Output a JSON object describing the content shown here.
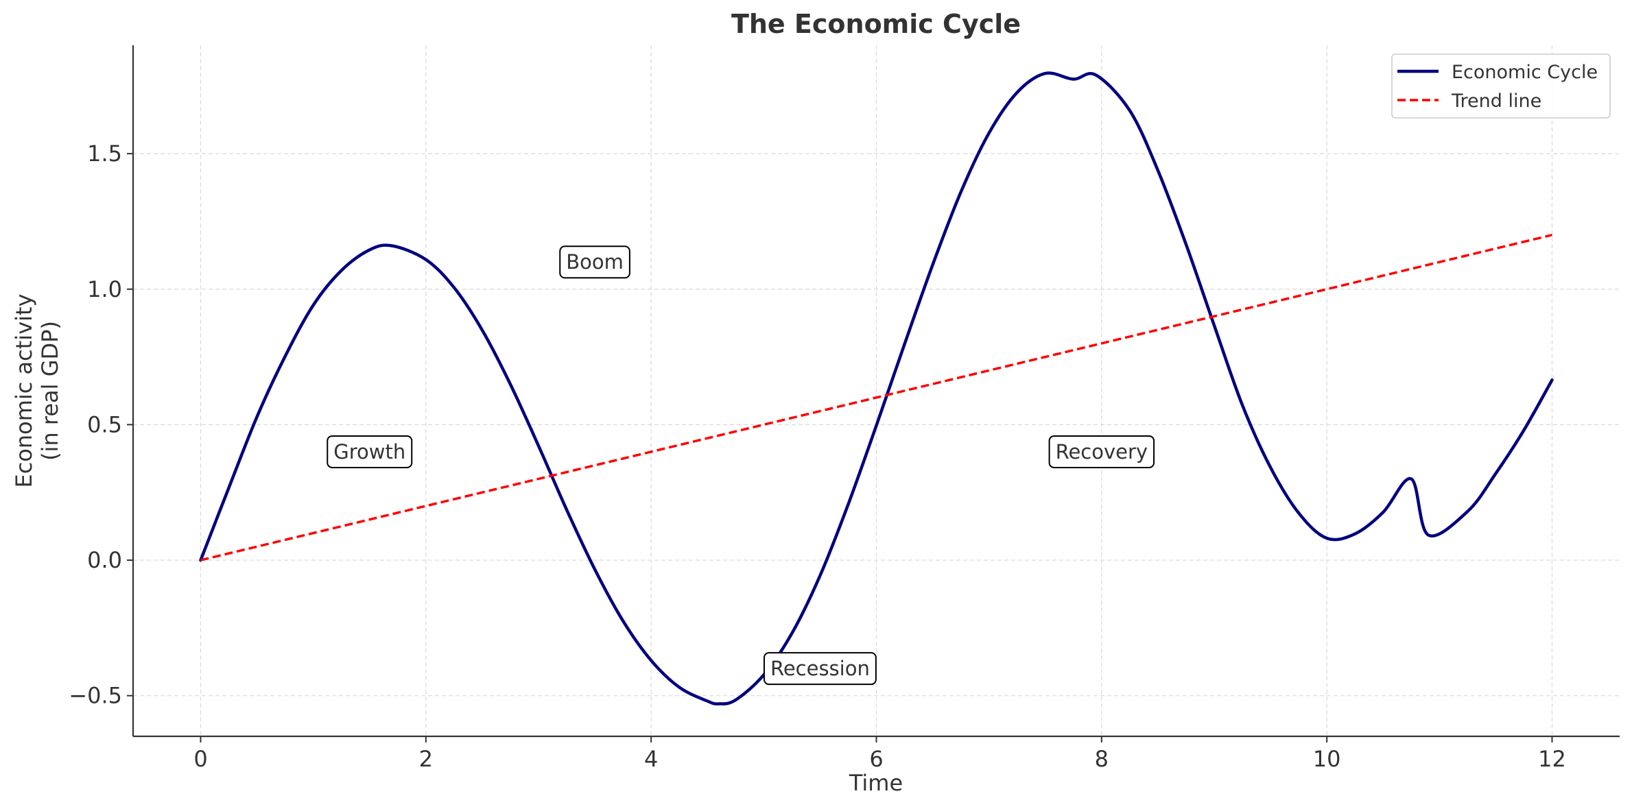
{
  "chart_data": {
    "type": "line",
    "title": "The Economic Cycle",
    "xlabel": "Time",
    "ylabel_lines": [
      "Economic activity",
      "(in real GDP)"
    ],
    "xlim": [
      -0.6,
      12.6
    ],
    "ylim": [
      -0.65,
      1.9
    ],
    "x_ticks": [
      0,
      2,
      4,
      6,
      8,
      10,
      12
    ],
    "x_tick_labels": [
      "0",
      "2",
      "4",
      "6",
      "8",
      "10",
      "12"
    ],
    "y_ticks": [
      -0.5,
      0.0,
      0.5,
      1.0,
      1.5
    ],
    "y_tick_labels": [
      "−0.5",
      "0.0",
      "0.5",
      "1.0",
      "1.5"
    ],
    "grid": true,
    "legend_position": "top-right",
    "series": [
      {
        "name": "Economic Cycle",
        "color": "#000080",
        "style": "solid",
        "x": [
          0,
          0.25,
          0.5,
          0.75,
          1,
          1.25,
          1.5,
          1.7,
          2,
          2.25,
          2.5,
          2.75,
          3,
          3.25,
          3.5,
          3.75,
          4,
          4.25,
          4.5,
          4.6,
          4.75,
          5,
          5.25,
          5.5,
          5.75,
          6,
          6.25,
          6.5,
          6.75,
          7,
          7.25,
          7.5,
          7.75,
          7.95,
          8.25,
          8.5,
          8.75,
          9,
          9.25,
          9.5,
          9.75,
          10,
          10.25,
          10.5,
          10.75,
          10.9,
          11.25,
          11.5,
          11.75,
          12
        ],
        "y": [
          0,
          0.267,
          0.529,
          0.752,
          0.941,
          1.069,
          1.145,
          1.16,
          1.109,
          1.006,
          0.849,
          0.649,
          0.422,
          0.186,
          -0.034,
          -0.224,
          -0.37,
          -0.469,
          -0.52,
          -0.53,
          -0.516,
          -0.423,
          -0.27,
          -0.057,
          0.206,
          0.497,
          0.797,
          1.09,
          1.358,
          1.576,
          1.726,
          1.796,
          1.775,
          1.79,
          1.659,
          1.438,
          1.165,
          0.866,
          0.572,
          0.342,
          0.174,
          0.081,
          0.097,
          0.177,
          0.3,
          0.093,
          0.18,
          0.32,
          0.48,
          0.665
        ]
      },
      {
        "name": "Trend line",
        "color": "#ff0000",
        "style": "dashed",
        "x": [
          0,
          12
        ],
        "y": [
          0,
          1.2
        ]
      }
    ],
    "annotations": [
      {
        "text": "Growth",
        "x": 1.5,
        "y": 0.4
      },
      {
        "text": "Boom",
        "x": 3.5,
        "y": 1.1
      },
      {
        "text": "Recession",
        "x": 5.5,
        "y": -0.4
      },
      {
        "text": "Recovery",
        "x": 8.0,
        "y": 0.4
      }
    ]
  }
}
